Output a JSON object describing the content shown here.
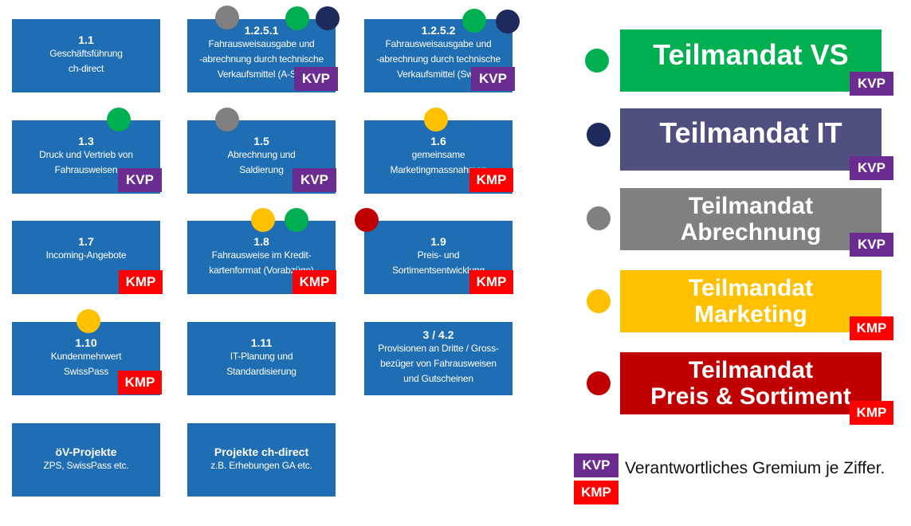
{
  "colors": {
    "tile_blue": "#1f6db3",
    "kvp_purple": "#6b2c91",
    "kmp_red": "#ff0000",
    "vs_green": "#00b050",
    "it_navy": "#1f2a5c",
    "abrechnung_grey": "#808080",
    "marketing_yellow": "#ffc000",
    "preis_red": "#c00000"
  },
  "badges": {
    "kvp": "KVP",
    "kmp": "KMP"
  },
  "tiles": [
    {
      "num": "1.1",
      "text": "Geschäftsführung ch-direct",
      "badge": ""
    },
    {
      "num": "1.2.5.1",
      "text": "Fahrausweisausgabe und -abrechnung durch technische Verkaufsmittel (A-Sys…",
      "badge": "KVP"
    },
    {
      "num": "1.2.5.2",
      "text": "Fahrausweisausgabe und -abrechnung durch technische Verkaufsmittel (Swis…",
      "badge": "KVP"
    },
    {
      "num": "1.3",
      "text": "Druck und Vertrieb von Fahrausweisen",
      "badge": "KVP"
    },
    {
      "num": "1.5",
      "text": "Abrechnung und Saldierung",
      "badge": "KVP"
    },
    {
      "num": "1.6",
      "text": "gemeinsame Marketingmassnahmen",
      "badge": "KMP"
    },
    {
      "num": "1.7",
      "text": "Incoming-Angebote",
      "badge": "KMP"
    },
    {
      "num": "1.8",
      "text": "Fahrausweise im Kreditkartenformat (Vorabzüge)",
      "badge": "KMP"
    },
    {
      "num": "1.9",
      "text": "Preis- und Sortimentsentwicklung",
      "badge": "KMP"
    },
    {
      "num": "1.10",
      "text": "Kundenmehrwert SwissPass",
      "badge": "KMP"
    },
    {
      "num": "1.11",
      "text": "IT-Planung und Standardisierung",
      "badge": ""
    },
    {
      "num": "3 / 4.2",
      "text": "Provisionen an Dritte / Grossbezüger von Fahrausweisen und Gutscheinen",
      "badge": ""
    },
    {
      "num": "öV-Projekte",
      "text": "ZPS, SwissPass etc.",
      "badge": ""
    },
    {
      "num": "Projekte ch-direct",
      "text": "z.B. Erhebungen GA etc.",
      "badge": ""
    }
  ],
  "tile_lines": {
    "t0": [
      "Geschäftsführung",
      "ch-direct"
    ],
    "t1": [
      "Fahrausweisausgabe und",
      "-abrechnung durch technische",
      "Verkaufsmittel (A-Sys"
    ],
    "t2": [
      "Fahrausweisausgabe und",
      "-abrechnung durch technische",
      "Verkaufsmittel (Swis"
    ],
    "t3": [
      "Druck und Vertrieb von",
      "Fahrausweisen"
    ],
    "t4": [
      "Abrechnung und",
      "Saldierung"
    ],
    "t5": [
      "gemeinsame",
      "Marketingmassnahmen"
    ],
    "t6": [
      "Incoming-Angebote"
    ],
    "t7": [
      "Fahrausweise im Kredit-",
      "kartenformat (Vorabzüge)"
    ],
    "t8": [
      "Preis- und",
      "Sortimentsentwicklung"
    ],
    "t9": [
      "Kundenmehrwert",
      "SwissPass"
    ],
    "t10": [
      "IT-Planung und",
      "Standardisierung"
    ],
    "t11": [
      "Provisionen an Dritte / Gross-",
      "bezüger von Fahrausweisen",
      "und Gutscheinen"
    ],
    "t12": [
      "ZPS, SwissPass etc."
    ],
    "t13": [
      "z.B. Erhebungen GA etc."
    ]
  },
  "mandates": [
    {
      "line1": "Teilmandat VS",
      "line2": "",
      "badge": "KVP"
    },
    {
      "line1": "Teilmandat IT",
      "line2": "",
      "badge": "KVP"
    },
    {
      "line1": "Teilmandat",
      "line2": "Abrechnung",
      "badge": "KVP"
    },
    {
      "line1": "Teilmandat",
      "line2": "Marketing",
      "badge": "KMP"
    },
    {
      "line1": "Teilmandat",
      "line2": "Preis & Sortiment",
      "badge": "KMP"
    }
  ],
  "legend": {
    "kvp": "KVP",
    "kmp": "KMP",
    "text": "Verantwortliches Gremium je Ziffer."
  }
}
